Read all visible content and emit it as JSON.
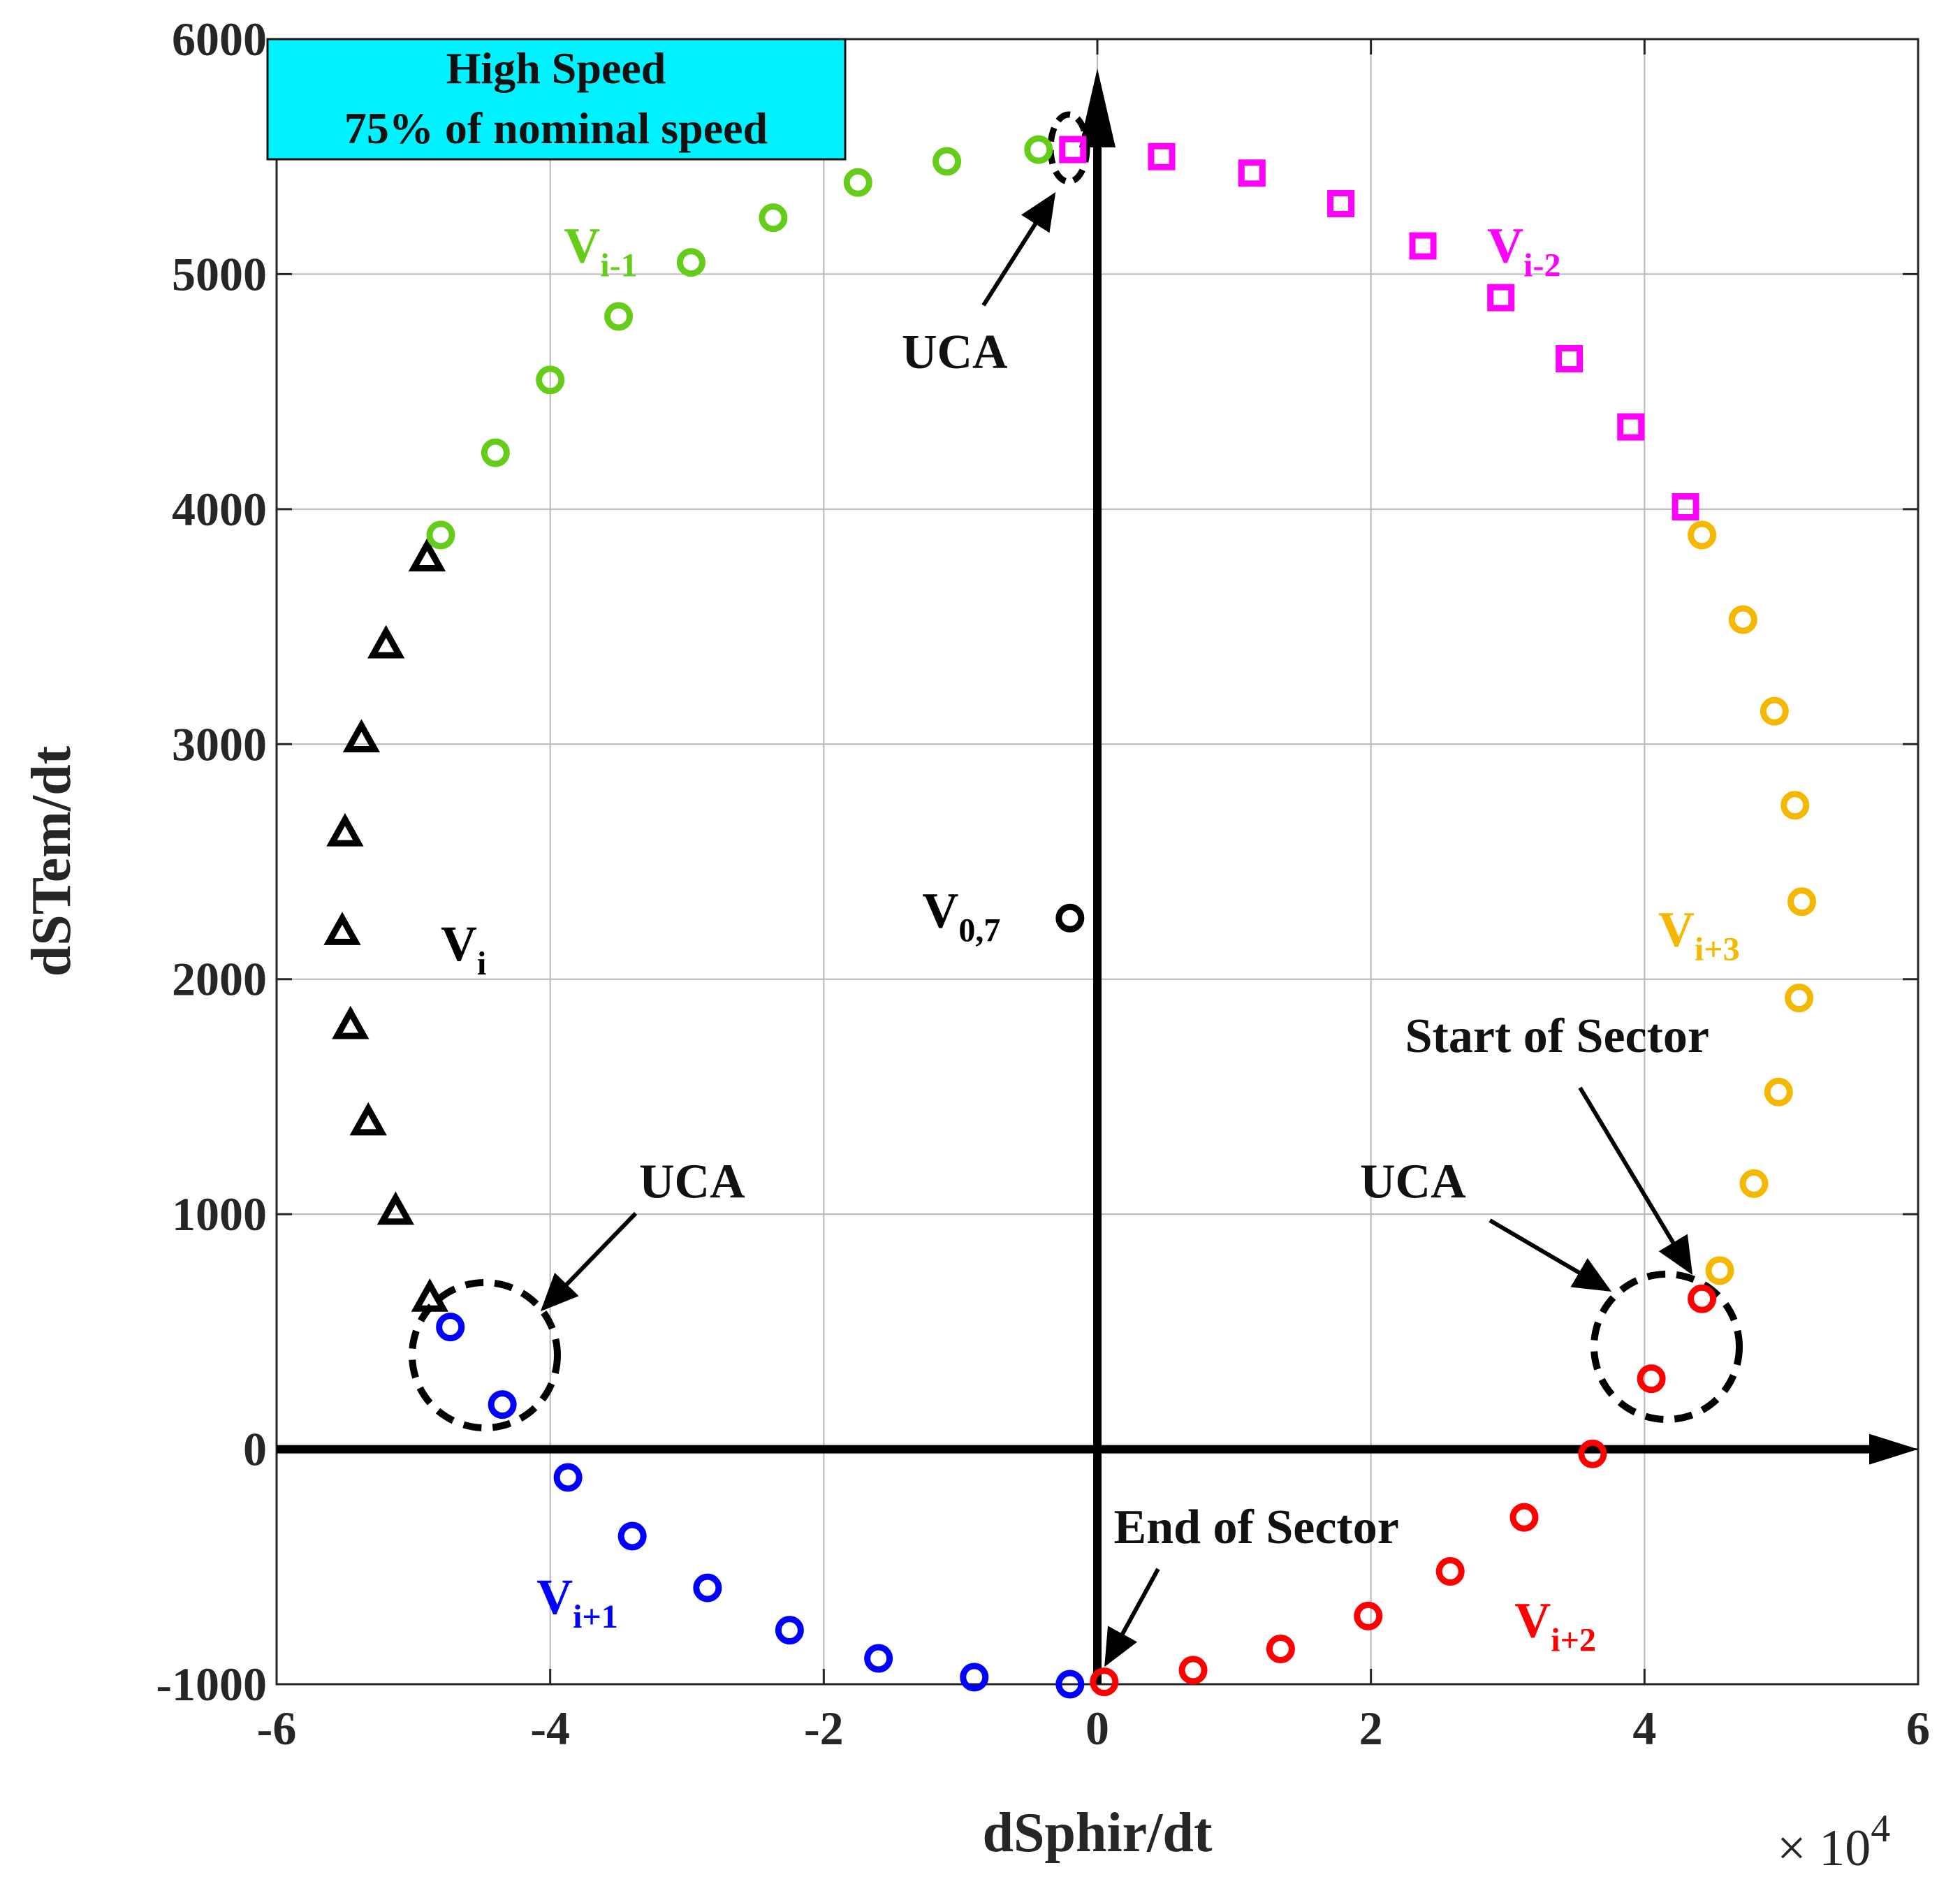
{
  "chart_data": {
    "type": "scatter",
    "title": "",
    "xlabel": "dSphir/dt",
    "ylabel": "dSTem/dt",
    "x_exponent_label": "× 10",
    "x_exponent_power": "4",
    "xlim": [
      -6,
      6
    ],
    "ylim": [
      -1000,
      6000
    ],
    "x_ticks": [
      -6,
      -4,
      -2,
      0,
      2,
      4,
      6
    ],
    "x_tick_labels": [
      "-6",
      "-4",
      "-2",
      "0",
      "2",
      "4",
      "6"
    ],
    "y_ticks": [
      -1000,
      0,
      1000,
      2000,
      3000,
      4000,
      5000,
      6000
    ],
    "y_tick_labels": [
      "-1000",
      "0",
      "1000",
      "2000",
      "3000",
      "4000",
      "5000",
      "6000"
    ],
    "grid": true,
    "info_box": {
      "line1": "High Speed",
      "line2": "75% of nominal speed",
      "color": "#00f2ff"
    },
    "series": [
      {
        "name": "V_i",
        "label_main": "V",
        "label_sub": "i",
        "label_x": -4.8,
        "label_y": 2080,
        "color": "#000000",
        "marker": "triangle",
        "points": [
          [
            -4.9,
            3790
          ],
          [
            -5.2,
            3420
          ],
          [
            -5.38,
            3020
          ],
          [
            -5.5,
            2620
          ],
          [
            -5.52,
            2200
          ],
          [
            -5.46,
            1800
          ],
          [
            -5.33,
            1390
          ],
          [
            -5.13,
            1010
          ],
          [
            -4.88,
            640
          ]
        ]
      },
      {
        "name": "V_i-1",
        "label_main": "V",
        "label_sub": "i-1",
        "label_x": -3.9,
        "label_y": 5050,
        "color": "#66cc1a",
        "marker": "circle",
        "points": [
          [
            -4.8,
            3890
          ],
          [
            -4.4,
            4240
          ],
          [
            -4.0,
            4550
          ],
          [
            -3.5,
            4820
          ],
          [
            -2.97,
            5050
          ],
          [
            -2.37,
            5240
          ],
          [
            -1.75,
            5390
          ],
          [
            -1.1,
            5480
          ],
          [
            -0.43,
            5530
          ]
        ]
      },
      {
        "name": "V_i-2",
        "label_main": "V",
        "label_sub": "i-2",
        "label_x": 2.85,
        "label_y": 5050,
        "color": "#ff00ff",
        "marker": "square",
        "points": [
          [
            -0.18,
            5530
          ],
          [
            0.47,
            5500
          ],
          [
            1.13,
            5430
          ],
          [
            1.78,
            5300
          ],
          [
            2.38,
            5120
          ],
          [
            2.95,
            4900
          ],
          [
            3.45,
            4640
          ],
          [
            3.9,
            4350
          ],
          [
            4.3,
            4010
          ]
        ]
      },
      {
        "name": "V_i+3",
        "label_main": "V",
        "label_sub": "i+3",
        "label_x": 4.1,
        "label_y": 2140,
        "color": "#f5b800",
        "marker": "circle",
        "points": [
          [
            4.42,
            3890
          ],
          [
            4.72,
            3530
          ],
          [
            4.95,
            3140
          ],
          [
            5.1,
            2740
          ],
          [
            5.15,
            2330
          ],
          [
            5.13,
            1920
          ],
          [
            4.98,
            1520
          ],
          [
            4.8,
            1130
          ],
          [
            4.55,
            760
          ]
        ]
      },
      {
        "name": "V_i+2",
        "label_main": "V",
        "label_sub": "i+2",
        "label_x": 3.05,
        "label_y": -800,
        "color": "#ff0000",
        "marker": "circle",
        "points": [
          [
            4.42,
            640
          ],
          [
            4.05,
            300
          ],
          [
            3.62,
            -20
          ],
          [
            3.12,
            -290
          ],
          [
            2.58,
            -520
          ],
          [
            1.98,
            -710
          ],
          [
            1.34,
            -850
          ],
          [
            0.7,
            -940
          ],
          [
            0.05,
            -990
          ]
        ]
      },
      {
        "name": "V_i+1",
        "label_main": "V",
        "label_sub": "i+1",
        "label_x": -4.1,
        "label_y": -700,
        "color": "#0000ff",
        "marker": "circle",
        "points": [
          [
            -4.73,
            520
          ],
          [
            -4.35,
            190
          ],
          [
            -3.87,
            -120
          ],
          [
            -3.4,
            -370
          ],
          [
            -2.85,
            -590
          ],
          [
            -2.25,
            -770
          ],
          [
            -1.6,
            -890
          ],
          [
            -0.9,
            -970
          ],
          [
            -0.2,
            -1000
          ]
        ]
      },
      {
        "name": "V_0,7",
        "label_main": "V",
        "label_sub": "0,7",
        "label_x": -1.28,
        "label_y": 2220,
        "color": "#000000",
        "marker": "circle",
        "points": [
          [
            -0.2,
            2260
          ]
        ]
      }
    ],
    "annotations": [
      {
        "text": "UCA",
        "x": -1.43,
        "y": 4600
      },
      {
        "text": "UCA",
        "x": -3.35,
        "y": 1070
      },
      {
        "text": "UCA",
        "x": 1.92,
        "y": 1070
      },
      {
        "text": "Start of Sector",
        "x": 2.25,
        "y": 1690
      },
      {
        "text": "End of Sector",
        "x": 0.12,
        "y": -400
      }
    ]
  }
}
